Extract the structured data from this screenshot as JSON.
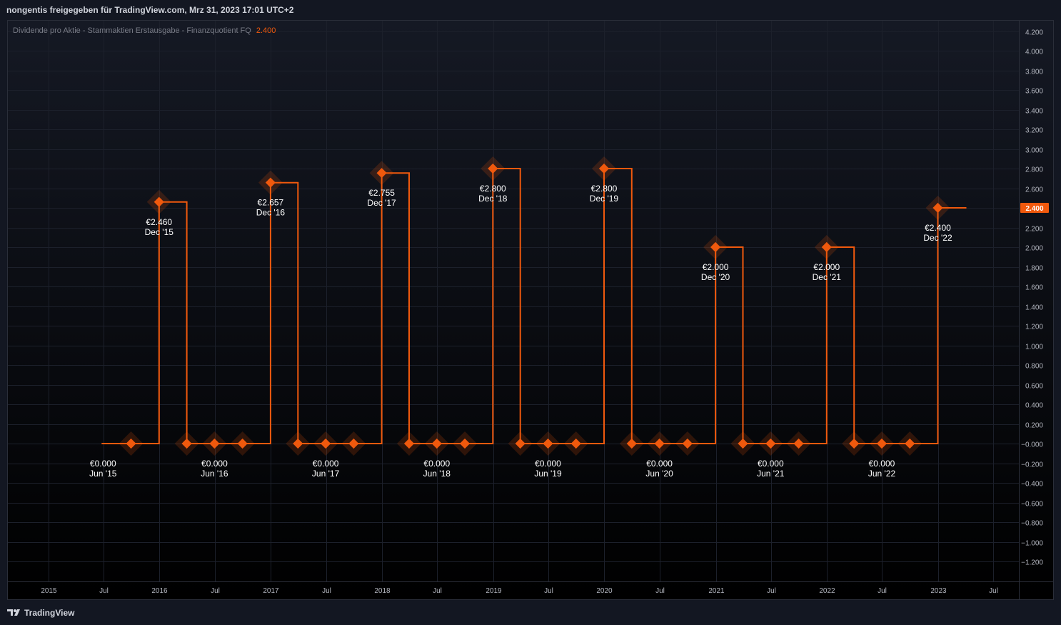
{
  "header": {
    "share_text": "nongentis freigegeben für TradingView.com, Mrz 31, 2023 17:01 UTC+2"
  },
  "legend": {
    "series_label": "Dividende pro Aktie - Stammaktien Erstausgabe - Finanzquotient FQ",
    "last_value": "2.400"
  },
  "footer": {
    "brand": "TradingView"
  },
  "colors": {
    "background_top": "#151924",
    "background_bottom": "#000000",
    "series": "#f0590d",
    "axis_text": "#b2b5be",
    "label_text": "#ffffff",
    "grid": "#1c202b"
  },
  "chart_data": {
    "type": "line",
    "step": true,
    "title": "",
    "xlabel": "",
    "ylabel": "",
    "ylim": [
      -1.34,
      4.28
    ],
    "y_ticks": [
      "4.200",
      "4.000",
      "3.800",
      "3.600",
      "3.400",
      "3.200",
      "3.000",
      "2.800",
      "2.600",
      "2.400",
      "2.200",
      "2.000",
      "1.800",
      "1.600",
      "1.400",
      "1.200",
      "1.000",
      "0.800",
      "0.600",
      "0.400",
      "0.200",
      "−0.000",
      "−0.200",
      "−0.400",
      "−0.600",
      "−0.800",
      "−1.000",
      "−1.200"
    ],
    "y_tick_values": [
      4.2,
      4.0,
      3.8,
      3.6,
      3.4,
      3.2,
      3.0,
      2.8,
      2.6,
      2.4,
      2.2,
      2.0,
      1.8,
      1.6,
      1.4,
      1.2,
      1.0,
      0.8,
      0.6,
      0.4,
      0.2,
      0,
      -0.2,
      -0.4,
      -0.6,
      -0.8,
      -1.0,
      -1.2
    ],
    "x_ticks": [
      {
        "label": "2015",
        "x": "2015-01-01"
      },
      {
        "label": "Jul",
        "x": "2015-07-01"
      },
      {
        "label": "2016",
        "x": "2016-01-01"
      },
      {
        "label": "Jul",
        "x": "2016-07-01"
      },
      {
        "label": "2017",
        "x": "2017-01-01"
      },
      {
        "label": "Jul",
        "x": "2017-07-01"
      },
      {
        "label": "2018",
        "x": "2018-01-01"
      },
      {
        "label": "Jul",
        "x": "2018-07-01"
      },
      {
        "label": "2019",
        "x": "2019-01-01"
      },
      {
        "label": "Jul",
        "x": "2019-07-01"
      },
      {
        "label": "2020",
        "x": "2020-01-01"
      },
      {
        "label": "Jul",
        "x": "2020-07-01"
      },
      {
        "label": "2021",
        "x": "2021-01-01"
      },
      {
        "label": "Jul",
        "x": "2021-07-01"
      },
      {
        "label": "2022",
        "x": "2022-01-01"
      },
      {
        "label": "Jul",
        "x": "2022-07-01"
      },
      {
        "label": "2023",
        "x": "2023-01-01"
      },
      {
        "label": "Jul",
        "x": "2023-07-01"
      }
    ],
    "series": [
      {
        "values": [
          {
            "x": "2015-06-30",
            "y": 0.0
          },
          {
            "x": "2015-09-30",
            "y": 0.0
          },
          {
            "x": "2015-12-31",
            "y": 2.46
          },
          {
            "x": "2016-03-31",
            "y": 0.0
          },
          {
            "x": "2016-06-30",
            "y": 0.0
          },
          {
            "x": "2016-09-30",
            "y": 0.0
          },
          {
            "x": "2016-12-31",
            "y": 2.657
          },
          {
            "x": "2017-03-31",
            "y": 0.0
          },
          {
            "x": "2017-06-30",
            "y": 0.0
          },
          {
            "x": "2017-09-30",
            "y": 0.0
          },
          {
            "x": "2017-12-31",
            "y": 2.755
          },
          {
            "x": "2018-03-31",
            "y": 0.0
          },
          {
            "x": "2018-06-30",
            "y": 0.0
          },
          {
            "x": "2018-09-30",
            "y": 0.0
          },
          {
            "x": "2018-12-31",
            "y": 2.8
          },
          {
            "x": "2019-03-31",
            "y": 0.0
          },
          {
            "x": "2019-06-30",
            "y": 0.0
          },
          {
            "x": "2019-09-30",
            "y": 0.0
          },
          {
            "x": "2019-12-31",
            "y": 2.8
          },
          {
            "x": "2020-03-31",
            "y": 0.0
          },
          {
            "x": "2020-06-30",
            "y": 0.0
          },
          {
            "x": "2020-09-30",
            "y": 0.0
          },
          {
            "x": "2020-12-31",
            "y": 2.0
          },
          {
            "x": "2021-03-31",
            "y": 0.0
          },
          {
            "x": "2021-06-30",
            "y": 0.0
          },
          {
            "x": "2021-09-30",
            "y": 0.0
          },
          {
            "x": "2021-12-31",
            "y": 2.0
          },
          {
            "x": "2022-03-31",
            "y": 0.0
          },
          {
            "x": "2022-06-30",
            "y": 0.0
          },
          {
            "x": "2022-09-30",
            "y": 0.0
          },
          {
            "x": "2022-12-31",
            "y": 2.4
          }
        ]
      }
    ],
    "annotations": [
      {
        "x": "2015-06-30",
        "y": 0.0,
        "value": "€0.000",
        "period": "Jun '15",
        "marker": false
      },
      {
        "x": "2015-12-31",
        "y": 2.46,
        "value": "€2.460",
        "period": "Dec '15",
        "marker": true
      },
      {
        "x": "2016-06-30",
        "y": 0.0,
        "value": "€0.000",
        "period": "Jun '16",
        "marker": true
      },
      {
        "x": "2016-12-31",
        "y": 2.657,
        "value": "€2.657",
        "period": "Dec '16",
        "marker": true
      },
      {
        "x": "2017-06-30",
        "y": 0.0,
        "value": "€0.000",
        "period": "Jun '17",
        "marker": true
      },
      {
        "x": "2017-12-31",
        "y": 2.755,
        "value": "€2.755",
        "period": "Dec '17",
        "marker": true
      },
      {
        "x": "2018-06-30",
        "y": 0.0,
        "value": "€0.000",
        "period": "Jun '18",
        "marker": true
      },
      {
        "x": "2018-12-31",
        "y": 2.8,
        "value": "€2.800",
        "period": "Dec '18",
        "marker": true
      },
      {
        "x": "2019-06-30",
        "y": 0.0,
        "value": "€0.000",
        "period": "Jun '19",
        "marker": true
      },
      {
        "x": "2019-12-31",
        "y": 2.8,
        "value": "€2.800",
        "period": "Dec '19",
        "marker": true
      },
      {
        "x": "2020-06-30",
        "y": 0.0,
        "value": "€0.000",
        "period": "Jun '20",
        "marker": true
      },
      {
        "x": "2020-12-31",
        "y": 2.0,
        "value": "€2.000",
        "period": "Dec '20",
        "marker": true
      },
      {
        "x": "2021-06-30",
        "y": 0.0,
        "value": "€0.000",
        "period": "Jun '21",
        "marker": true
      },
      {
        "x": "2021-12-31",
        "y": 2.0,
        "value": "€2.000",
        "period": "Dec '21",
        "marker": true
      },
      {
        "x": "2022-06-30",
        "y": 0.0,
        "value": "€0.000",
        "period": "Jun '22",
        "marker": true
      },
      {
        "x": "2022-12-31",
        "y": 2.4,
        "value": "€2.400",
        "period": "Dec '22",
        "marker": true
      }
    ],
    "last_price_label": "2.400",
    "grid": true,
    "legend": "top-left"
  }
}
